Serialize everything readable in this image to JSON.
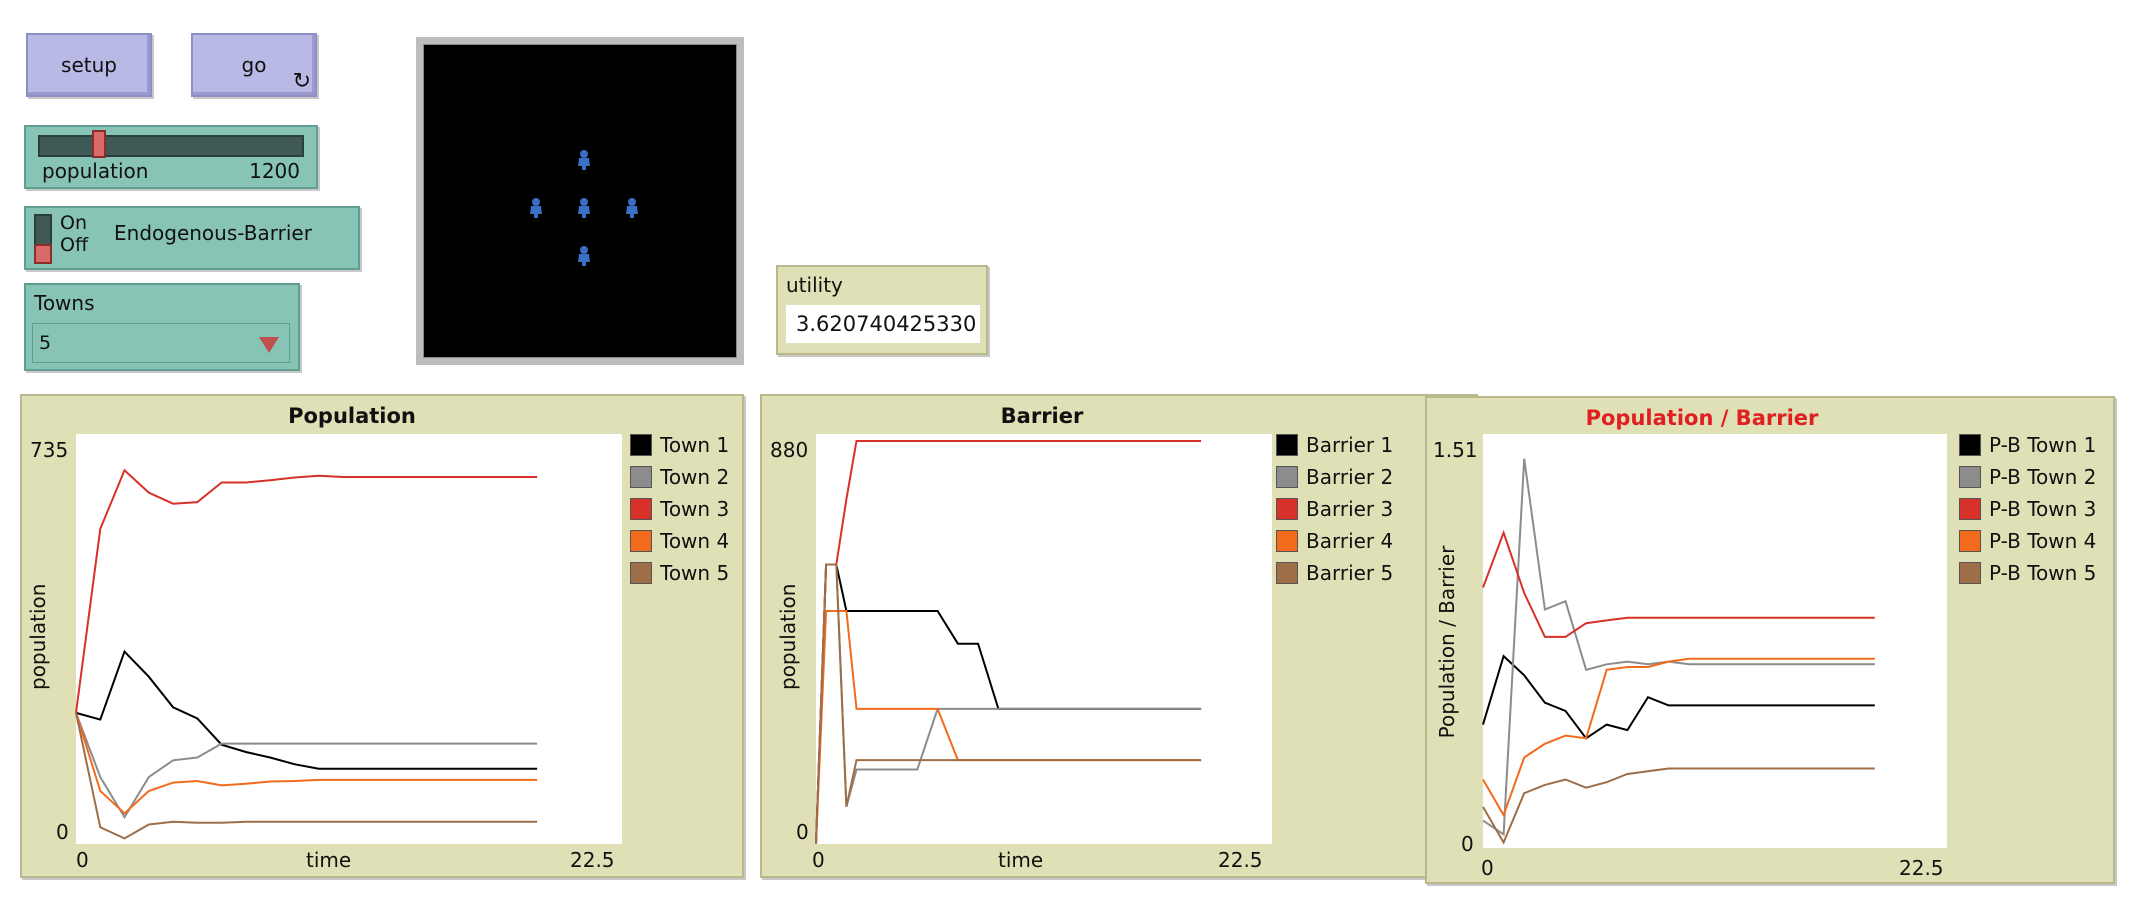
{
  "buttons": {
    "setup": "setup",
    "go": "go",
    "go_icon": "↻"
  },
  "slider": {
    "label": "population",
    "value": "1200",
    "position_fraction": 0.21
  },
  "switch": {
    "on": "On",
    "off": "Off",
    "label": "Endogenous-Barrier",
    "state": "off"
  },
  "chooser": {
    "label": "Towns",
    "value": "5"
  },
  "monitor": {
    "label": "utility",
    "value": "3.620740425330"
  },
  "colors": {
    "town1": "#000000",
    "town2": "#8c8c8c",
    "town3": "#d7312a",
    "town4": "#f26b1d",
    "town5": "#9d6e48",
    "agent": "#3a6fc4"
  },
  "view": {
    "agents": [
      "person-icon",
      "person-icon",
      "person-icon",
      "person-icon",
      "person-icon"
    ]
  },
  "plots": [
    {
      "title": "Population",
      "title_color": "#111111",
      "xlabel": "time",
      "ylabel": "population",
      "xmin_label": "0",
      "xmax_label": "22.5",
      "ymin_label": "0",
      "ymax_label": "735",
      "legend": [
        "Town 1",
        "Town 2",
        "Town 3",
        "Town 4",
        "Town 5"
      ]
    },
    {
      "title": "Barrier",
      "title_color": "#111111",
      "xlabel": "time",
      "ylabel": "population",
      "xmin_label": "0",
      "xmax_label": "22.5",
      "ymin_label": "0",
      "ymax_label": "880",
      "legend": [
        "Barrier 1",
        "Barrier 2",
        "Barrier 3",
        "Barrier 4",
        "Barrier 5"
      ]
    },
    {
      "title": "Population / Barrier",
      "title_color": "#e02020",
      "xlabel": "",
      "ylabel": "Population / Barrier",
      "xmin_label": "0",
      "xmax_label": "22.5",
      "ymin_label": "0",
      "ymax_label": "1.51",
      "legend": [
        "P-B Town 1",
        "P-B Town 2",
        "P-B Town 3",
        "P-B Town 4",
        "P-B Town 5"
      ]
    }
  ],
  "chart_data": [
    {
      "type": "line",
      "title": "Population",
      "xlabel": "time",
      "ylabel": "population",
      "xlim": [
        0,
        22.5
      ],
      "ylim": [
        0,
        735
      ],
      "x": [
        0,
        1,
        2,
        3,
        4,
        5,
        6,
        7,
        8,
        9,
        10,
        11,
        12,
        13,
        14,
        15,
        16,
        17,
        18,
        19
      ],
      "series": [
        {
          "name": "Town 1",
          "values": [
            235,
            223,
            345,
            300,
            245,
            225,
            178,
            165,
            155,
            143,
            135,
            135,
            135,
            135,
            135,
            135,
            135,
            135,
            135,
            135
          ]
        },
        {
          "name": "Town 2",
          "values": [
            235,
            120,
            48,
            120,
            150,
            155,
            180,
            180,
            180,
            180,
            180,
            180,
            180,
            180,
            180,
            180,
            180,
            180,
            180,
            180
          ]
        },
        {
          "name": "Town 3",
          "values": [
            235,
            565,
            670,
            630,
            610,
            613,
            648,
            648,
            652,
            657,
            660,
            658,
            658,
            658,
            658,
            658,
            658,
            658,
            658,
            658
          ]
        },
        {
          "name": "Town 4",
          "values": [
            235,
            95,
            55,
            95,
            110,
            113,
            105,
            108,
            112,
            113,
            115,
            115,
            115,
            115,
            115,
            115,
            115,
            115,
            115,
            115
          ]
        },
        {
          "name": "Town 5",
          "values": [
            235,
            30,
            10,
            35,
            40,
            38,
            38,
            40,
            40,
            40,
            40,
            40,
            40,
            40,
            40,
            40,
            40,
            40,
            40,
            40
          ]
        }
      ]
    },
    {
      "type": "line",
      "title": "Barrier",
      "xlabel": "time",
      "ylabel": "population",
      "xlim": [
        0,
        22.5
      ],
      "ylim": [
        0,
        880
      ],
      "x": [
        0,
        0.5,
        1,
        1.5,
        2,
        3,
        4,
        5,
        6,
        7,
        8,
        9,
        10,
        11,
        12,
        13,
        14,
        15,
        16,
        17,
        18,
        19
      ],
      "series": [
        {
          "name": "Barrier 1",
          "values": [
            0,
            600,
            600,
            500,
            500,
            500,
            500,
            500,
            500,
            430,
            430,
            290,
            290,
            290,
            290,
            290,
            290,
            290,
            290,
            290,
            290,
            290
          ]
        },
        {
          "name": "Barrier 2",
          "values": [
            0,
            600,
            600,
            80,
            160,
            160,
            160,
            160,
            290,
            290,
            290,
            290,
            290,
            290,
            290,
            290,
            290,
            290,
            290,
            290,
            290,
            290
          ]
        },
        {
          "name": "Barrier 3",
          "values": [
            0,
            600,
            600,
            740,
            865,
            865,
            865,
            865,
            865,
            865,
            865,
            865,
            865,
            865,
            865,
            865,
            865,
            865,
            865,
            865,
            865,
            865
          ]
        },
        {
          "name": "Barrier 4",
          "values": [
            0,
            500,
            500,
            500,
            290,
            290,
            290,
            290,
            290,
            180,
            180,
            180,
            180,
            180,
            180,
            180,
            180,
            180,
            180,
            180,
            180,
            180
          ]
        },
        {
          "name": "Barrier 5",
          "values": [
            0,
            600,
            600,
            80,
            180,
            180,
            180,
            180,
            180,
            180,
            180,
            180,
            180,
            180,
            180,
            180,
            180,
            180,
            180,
            180,
            180,
            180
          ]
        }
      ]
    },
    {
      "type": "line",
      "title": "Population / Barrier",
      "xlabel": "",
      "ylabel": "Population / Barrier",
      "xlim": [
        0,
        22.5
      ],
      "ylim": [
        0,
        1.51
      ],
      "x": [
        0,
        1,
        2,
        3,
        4,
        5,
        6,
        7,
        8,
        9,
        10,
        11,
        12,
        13,
        14,
        15,
        16,
        17,
        18,
        19
      ],
      "series": [
        {
          "name": "P-B Town 1",
          "values": [
            0.45,
            0.7,
            0.63,
            0.53,
            0.5,
            0.4,
            0.45,
            0.43,
            0.55,
            0.52,
            0.52,
            0.52,
            0.52,
            0.52,
            0.52,
            0.52,
            0.52,
            0.52,
            0.52,
            0.52
          ]
        },
        {
          "name": "P-B Town 2",
          "values": [
            0.1,
            0.05,
            1.42,
            0.87,
            0.9,
            0.65,
            0.67,
            0.68,
            0.67,
            0.68,
            0.67,
            0.67,
            0.67,
            0.67,
            0.67,
            0.67,
            0.67,
            0.67,
            0.67,
            0.67
          ]
        },
        {
          "name": "P-B Town 3",
          "values": [
            0.95,
            1.15,
            0.93,
            0.77,
            0.77,
            0.82,
            0.83,
            0.84,
            0.84,
            0.84,
            0.84,
            0.84,
            0.84,
            0.84,
            0.84,
            0.84,
            0.84,
            0.84,
            0.84,
            0.84
          ]
        },
        {
          "name": "P-B Town 4",
          "values": [
            0.25,
            0.12,
            0.33,
            0.38,
            0.41,
            0.4,
            0.65,
            0.66,
            0.66,
            0.68,
            0.69,
            0.69,
            0.69,
            0.69,
            0.69,
            0.69,
            0.69,
            0.69,
            0.69,
            0.69
          ]
        },
        {
          "name": "P-B Town 5",
          "values": [
            0.15,
            0.02,
            0.2,
            0.23,
            0.25,
            0.22,
            0.24,
            0.27,
            0.28,
            0.29,
            0.29,
            0.29,
            0.29,
            0.29,
            0.29,
            0.29,
            0.29,
            0.29,
            0.29,
            0.29
          ]
        }
      ]
    }
  ]
}
